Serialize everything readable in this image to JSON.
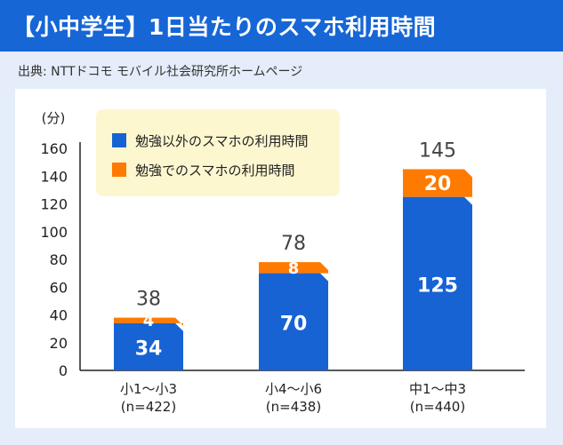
{
  "header": {
    "title": "【小中学生】1日当たりのスマホ利用時間"
  },
  "source": {
    "text": "出典: NTTドコモ モバイル社会研究所ホームページ"
  },
  "colors": {
    "header_bg": "#1666d6",
    "page_bg": "#e4edf9",
    "legend_bg": "#fdf7d0",
    "series_primary": "#1763d4",
    "series_secondary": "#ff7a00"
  },
  "chart_data": {
    "type": "bar",
    "stacked": true,
    "unit_label": "(分)",
    "categories": [
      "小1〜小3\n(n=422)",
      "小4〜小6\n(n=438)",
      "中1〜中3\n(n=440)"
    ],
    "series": [
      {
        "name": "勉強以外のスマホの利用時間",
        "values": [
          34,
          70,
          125
        ],
        "color": "#1763d4"
      },
      {
        "name": "勉強でのスマホの利用時間",
        "values": [
          4,
          8,
          20
        ],
        "color": "#ff7a00"
      }
    ],
    "totals": [
      38,
      78,
      145
    ],
    "ylim": [
      0,
      160
    ],
    "yticks": [
      0,
      20,
      40,
      60,
      80,
      100,
      120,
      140,
      160
    ],
    "grid": false,
    "legend_position": "top-left"
  }
}
